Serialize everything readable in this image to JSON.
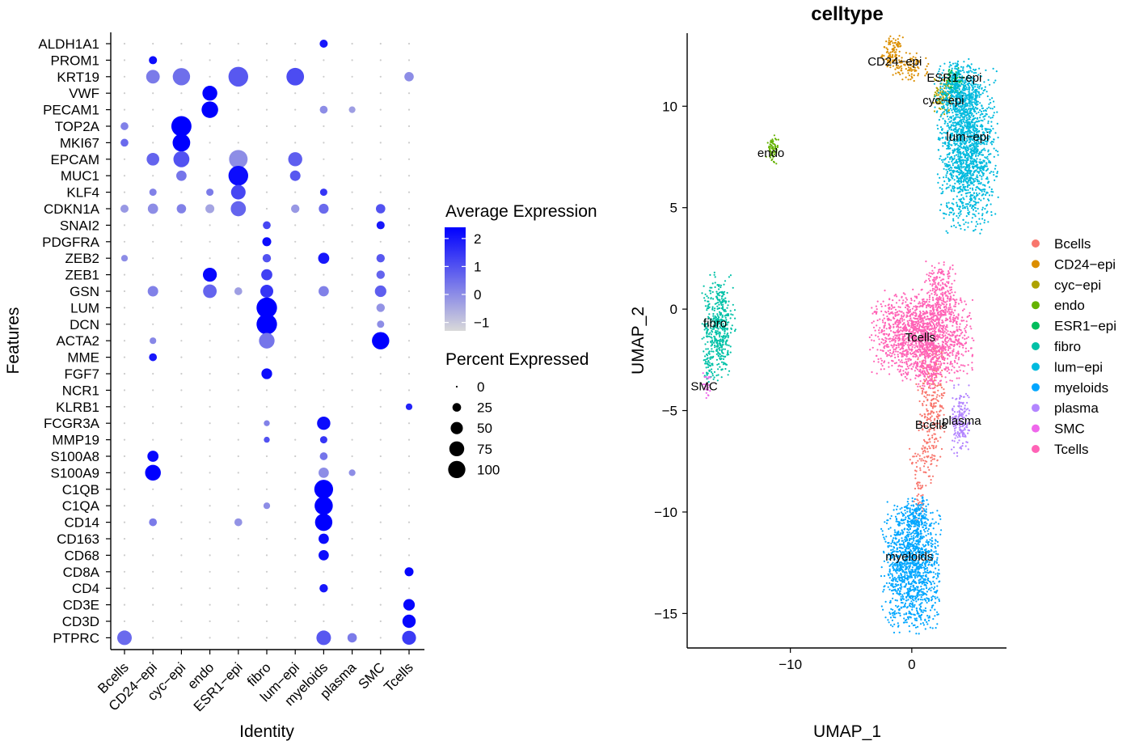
{
  "chart_data": [
    {
      "type": "dotplot",
      "xlabel": "Identity",
      "ylabel": "Features",
      "identities": [
        "Bcells",
        "CD24−epi",
        "cyc−epi",
        "endo",
        "ESR1−epi",
        "fibro",
        "lum−epi",
        "myeloids",
        "plasma",
        "SMC",
        "Tcells"
      ],
      "features": [
        "ALDH1A1",
        "PROM1",
        "KRT19",
        "VWF",
        "PECAM1",
        "TOP2A",
        "MKI67",
        "EPCAM",
        "MUC1",
        "KLF4",
        "CDKN1A",
        "SNAI2",
        "PDGFRA",
        "ZEB2",
        "ZEB1",
        "GSN",
        "LUM",
        "DCN",
        "ACTA2",
        "MME",
        "FGF7",
        "NCR1",
        "KLRB1",
        "FCGR3A",
        "MMP19",
        "S100A8",
        "S100A9",
        "C1QB",
        "C1QA",
        "CD14",
        "CD163",
        "CD68",
        "CD8A",
        "CD4",
        "CD3E",
        "CD3D",
        "PTPRC"
      ],
      "color_legend": {
        "title": "Average Expression",
        "ticks": [
          "2",
          "1",
          "0",
          "−1"
        ],
        "min": -1.3,
        "max": 2.4,
        "low_color": "#d9d9d9",
        "high_color": "#0000ff"
      },
      "size_legend": {
        "title": "Percent Expressed",
        "ticks": [
          "0",
          "25",
          "50",
          "75",
          "100"
        ]
      },
      "points": [
        {
          "feature": "ALDH1A1",
          "identity": "myeloids",
          "pct": 15,
          "avg": 2.0
        },
        {
          "feature": "PROM1",
          "identity": "CD24−epi",
          "pct": 15,
          "avg": 2.2
        },
        {
          "feature": "KRT19",
          "identity": "CD24−epi",
          "pct": 42,
          "avg": 0.3
        },
        {
          "feature": "KRT19",
          "identity": "cyc−epi",
          "pct": 68,
          "avg": 0.5
        },
        {
          "feature": "KRT19",
          "identity": "ESR1−epi",
          "pct": 88,
          "avg": 0.9
        },
        {
          "feature": "KRT19",
          "identity": "lum−epi",
          "pct": 70,
          "avg": 1.1
        },
        {
          "feature": "KRT19",
          "identity": "Tcells",
          "pct": 20,
          "avg": 0.0
        },
        {
          "feature": "VWF",
          "identity": "endo",
          "pct": 50,
          "avg": 2.4
        },
        {
          "feature": "PECAM1",
          "identity": "endo",
          "pct": 62,
          "avg": 2.4
        },
        {
          "feature": "PECAM1",
          "identity": "myeloids",
          "pct": 14,
          "avg": 0.0
        },
        {
          "feature": "PECAM1",
          "identity": "plasma",
          "pct": 10,
          "avg": -0.3
        },
        {
          "feature": "TOP2A",
          "identity": "Bcells",
          "pct": 14,
          "avg": 0.2
        },
        {
          "feature": "TOP2A",
          "identity": "cyc−epi",
          "pct": 92,
          "avg": 2.4
        },
        {
          "feature": "MKI67",
          "identity": "Bcells",
          "pct": 14,
          "avg": 0.6
        },
        {
          "feature": "MKI67",
          "identity": "cyc−epi",
          "pct": 70,
          "avg": 2.4
        },
        {
          "feature": "EPCAM",
          "identity": "CD24−epi",
          "pct": 36,
          "avg": 0.7
        },
        {
          "feature": "EPCAM",
          "identity": "cyc−epi",
          "pct": 58,
          "avg": 1.0
        },
        {
          "feature": "EPCAM",
          "identity": "ESR1−epi",
          "pct": 78,
          "avg": 0.0
        },
        {
          "feature": "EPCAM",
          "identity": "lum−epi",
          "pct": 45,
          "avg": 0.8
        },
        {
          "feature": "MUC1",
          "identity": "cyc−epi",
          "pct": 24,
          "avg": 0.4
        },
        {
          "feature": "MUC1",
          "identity": "ESR1−epi",
          "pct": 88,
          "avg": 2.2
        },
        {
          "feature": "MUC1",
          "identity": "lum−epi",
          "pct": 25,
          "avg": 0.9
        },
        {
          "feature": "KLF4",
          "identity": "CD24−epi",
          "pct": 12,
          "avg": 0.2
        },
        {
          "feature": "KLF4",
          "identity": "endo",
          "pct": 12,
          "avg": 0.3
        },
        {
          "feature": "KLF4",
          "identity": "ESR1−epi",
          "pct": 48,
          "avg": 1.2
        },
        {
          "feature": "KLF4",
          "identity": "myeloids",
          "pct": 12,
          "avg": 1.5
        },
        {
          "feature": "CDKN1A",
          "identity": "Bcells",
          "pct": 15,
          "avg": -0.2
        },
        {
          "feature": "CDKN1A",
          "identity": "CD24−epi",
          "pct": 24,
          "avg": 0.0
        },
        {
          "feature": "CDKN1A",
          "identity": "cyc−epi",
          "pct": 20,
          "avg": 0.2
        },
        {
          "feature": "CDKN1A",
          "identity": "endo",
          "pct": 18,
          "avg": -0.4
        },
        {
          "feature": "CDKN1A",
          "identity": "ESR1−epi",
          "pct": 52,
          "avg": 0.7
        },
        {
          "feature": "CDKN1A",
          "identity": "lum−epi",
          "pct": 16,
          "avg": -0.2
        },
        {
          "feature": "CDKN1A",
          "identity": "myeloids",
          "pct": 22,
          "avg": 0.6
        },
        {
          "feature": "CDKN1A",
          "identity": "SMC",
          "pct": 20,
          "avg": 1.0
        },
        {
          "feature": "SNAI2",
          "identity": "fibro",
          "pct": 14,
          "avg": 1.2
        },
        {
          "feature": "SNAI2",
          "identity": "SMC",
          "pct": 15,
          "avg": 2.0
        },
        {
          "feature": "PDGFRA",
          "identity": "fibro",
          "pct": 18,
          "avg": 2.2
        },
        {
          "feature": "ZEB2",
          "identity": "Bcells",
          "pct": 10,
          "avg": 0.0
        },
        {
          "feature": "ZEB2",
          "identity": "fibro",
          "pct": 16,
          "avg": 1.0
        },
        {
          "feature": "ZEB2",
          "identity": "myeloids",
          "pct": 28,
          "avg": 2.0
        },
        {
          "feature": "ZEB2",
          "identity": "SMC",
          "pct": 16,
          "avg": 0.9
        },
        {
          "feature": "ZEB1",
          "identity": "endo",
          "pct": 44,
          "avg": 2.3
        },
        {
          "feature": "ZEB1",
          "identity": "fibro",
          "pct": 28,
          "avg": 1.3
        },
        {
          "feature": "ZEB1",
          "identity": "SMC",
          "pct": 16,
          "avg": 0.7
        },
        {
          "feature": "GSN",
          "identity": "CD24−epi",
          "pct": 25,
          "avg": 0.2
        },
        {
          "feature": "GSN",
          "identity": "endo",
          "pct": 42,
          "avg": 0.7
        },
        {
          "feature": "GSN",
          "identity": "ESR1−epi",
          "pct": 14,
          "avg": -0.3
        },
        {
          "feature": "GSN",
          "identity": "fibro",
          "pct": 38,
          "avg": 1.5
        },
        {
          "feature": "GSN",
          "identity": "myeloids",
          "pct": 24,
          "avg": 0.2
        },
        {
          "feature": "GSN",
          "identity": "SMC",
          "pct": 30,
          "avg": 0.8
        },
        {
          "feature": "LUM",
          "identity": "fibro",
          "pct": 95,
          "avg": 2.4
        },
        {
          "feature": "LUM",
          "identity": "SMC",
          "pct": 16,
          "avg": -0.1
        },
        {
          "feature": "DCN",
          "identity": "fibro",
          "pct": 95,
          "avg": 2.4
        },
        {
          "feature": "DCN",
          "identity": "SMC",
          "pct": 12,
          "avg": 0.0
        },
        {
          "feature": "ACTA2",
          "identity": "CD24−epi",
          "pct": 10,
          "avg": 0.1
        },
        {
          "feature": "ACTA2",
          "identity": "fibro",
          "pct": 55,
          "avg": 0.4
        },
        {
          "feature": "ACTA2",
          "identity": "SMC",
          "pct": 68,
          "avg": 2.4
        },
        {
          "feature": "MME",
          "identity": "CD24−epi",
          "pct": 14,
          "avg": 2.0
        },
        {
          "feature": "FGF7",
          "identity": "fibro",
          "pct": 26,
          "avg": 2.2
        },
        {
          "feature": "KLRB1",
          "identity": "Tcells",
          "pct": 10,
          "avg": 1.8
        },
        {
          "feature": "FCGR3A",
          "identity": "myeloids",
          "pct": 40,
          "avg": 2.2
        },
        {
          "feature": "FCGR3A",
          "identity": "fibro",
          "pct": 8,
          "avg": 0.2
        },
        {
          "feature": "MMP19",
          "identity": "myeloids",
          "pct": 12,
          "avg": 1.5
        },
        {
          "feature": "MMP19",
          "identity": "fibro",
          "pct": 8,
          "avg": 1.0
        },
        {
          "feature": "S100A8",
          "identity": "CD24−epi",
          "pct": 28,
          "avg": 2.3
        },
        {
          "feature": "S100A8",
          "identity": "myeloids",
          "pct": 14,
          "avg": 0.4
        },
        {
          "feature": "S100A9",
          "identity": "CD24−epi",
          "pct": 56,
          "avg": 2.4
        },
        {
          "feature": "S100A9",
          "identity": "myeloids",
          "pct": 24,
          "avg": 0.0
        },
        {
          "feature": "S100A9",
          "identity": "plasma",
          "pct": 10,
          "avg": 0.0
        },
        {
          "feature": "C1QB",
          "identity": "myeloids",
          "pct": 80,
          "avg": 2.4
        },
        {
          "feature": "C1QA",
          "identity": "myeloids",
          "pct": 75,
          "avg": 2.4
        },
        {
          "feature": "C1QA",
          "identity": "fibro",
          "pct": 10,
          "avg": 0.0
        },
        {
          "feature": "CD14",
          "identity": "CD24−epi",
          "pct": 14,
          "avg": 0.3
        },
        {
          "feature": "CD14",
          "identity": "ESR1−epi",
          "pct": 14,
          "avg": -0.1
        },
        {
          "feature": "CD14",
          "identity": "myeloids",
          "pct": 68,
          "avg": 2.4
        },
        {
          "feature": "CD163",
          "identity": "myeloids",
          "pct": 24,
          "avg": 2.2
        },
        {
          "feature": "CD68",
          "identity": "myeloids",
          "pct": 24,
          "avg": 2.2
        },
        {
          "feature": "CD8A",
          "identity": "Tcells",
          "pct": 18,
          "avg": 2.3
        },
        {
          "feature": "CD4",
          "identity": "myeloids",
          "pct": 16,
          "avg": 2.0
        },
        {
          "feature": "CD3E",
          "identity": "Tcells",
          "pct": 30,
          "avg": 2.3
        },
        {
          "feature": "CD3D",
          "identity": "Tcells",
          "pct": 40,
          "avg": 2.3
        },
        {
          "feature": "PTPRC",
          "identity": "Bcells",
          "pct": 48,
          "avg": 0.6
        },
        {
          "feature": "PTPRC",
          "identity": "myeloids",
          "pct": 48,
          "avg": 0.9
        },
        {
          "feature": "PTPRC",
          "identity": "plasma",
          "pct": 20,
          "avg": 0.3
        },
        {
          "feature": "PTPRC",
          "identity": "Tcells",
          "pct": 44,
          "avg": 1.4
        }
      ]
    },
    {
      "type": "scatter",
      "title": "celltype",
      "xlabel": "UMAP_1",
      "ylabel": "UMAP_2",
      "xticks": [
        -10,
        0
      ],
      "yticks": [
        10,
        5,
        0,
        -5,
        -10,
        -15
      ],
      "xlim": [
        -18.5,
        7.8
      ],
      "ylim": [
        -16.7,
        13.6
      ],
      "legend_position": "right",
      "clusters": [
        {
          "name": "Bcells",
          "color": "#F8766D",
          "label": "Bcells",
          "label_pos": [
            1.6,
            -5.7
          ],
          "blobs": [
            {
              "cx": 1.7,
              "cy": -4.5,
              "sx": 0.55,
              "sy": 1.7,
              "n": 260
            },
            {
              "cx": 1.1,
              "cy": -7.3,
              "sx": 0.6,
              "sy": 0.9,
              "n": 70
            },
            {
              "cx": 0.6,
              "cy": -9.2,
              "sx": 0.2,
              "sy": 0.6,
              "n": 35
            }
          ]
        },
        {
          "name": "CD24−epi",
          "color": "#DB8E00",
          "label": "CD24−epi",
          "label_pos": [
            -1.4,
            12.2
          ],
          "blobs": [
            {
              "cx": -1.6,
              "cy": 12.6,
              "sx": 0.4,
              "sy": 0.4,
              "n": 110
            },
            {
              "cx": -0.1,
              "cy": 11.9,
              "sx": 0.7,
              "sy": 0.35,
              "n": 90
            }
          ]
        },
        {
          "name": "cyc−epi",
          "color": "#AEA200",
          "label": "cyc−epi",
          "label_pos": [
            2.6,
            10.3
          ],
          "blobs": [
            {
              "cx": 2.6,
              "cy": 10.6,
              "sx": 0.35,
              "sy": 0.45,
              "n": 100
            }
          ]
        },
        {
          "name": "endo",
          "color": "#64B200",
          "label": "endo",
          "label_pos": [
            -11.6,
            7.7
          ],
          "blobs": [
            {
              "cx": -11.5,
              "cy": 7.8,
              "sx": 0.25,
              "sy": 0.35,
              "n": 60
            }
          ]
        },
        {
          "name": "ESR1−epi",
          "color": "#00BD5C",
          "label": "ESR1−epi",
          "label_pos": [
            3.5,
            11.4
          ],
          "blobs": [
            {
              "cx": 3.5,
              "cy": 11.2,
              "sx": 0.4,
              "sy": 0.3,
              "n": 100
            }
          ]
        },
        {
          "name": "fibro",
          "color": "#00C1A7",
          "label": "fibro",
          "label_pos": [
            -16.2,
            -0.7
          ],
          "blobs": [
            {
              "cx": -15.9,
              "cy": -0.8,
              "sx": 0.6,
              "sy": 1.2,
              "n": 450
            },
            {
              "cx": -16.7,
              "cy": -2.7,
              "sx": 0.2,
              "sy": 0.4,
              "n": 40
            }
          ]
        },
        {
          "name": "lum−epi",
          "color": "#00BADE",
          "label": "lum−epi",
          "label_pos": [
            4.6,
            8.5
          ],
          "blobs": [
            {
              "cx": 4.6,
              "cy": 7.8,
              "sx": 1.1,
              "sy": 1.8,
              "n": 1500
            },
            {
              "cx": 3.9,
              "cy": 10.5,
              "sx": 0.9,
              "sy": 0.8,
              "n": 450
            }
          ]
        },
        {
          "name": "myeloids",
          "color": "#00A6FF",
          "label": "myeloids",
          "label_pos": [
            -0.2,
            -12.2
          ],
          "blobs": [
            {
              "cx": 0.0,
              "cy": -12.6,
              "sx": 1.1,
              "sy": 1.5,
              "n": 1300
            },
            {
              "cx": 0.5,
              "cy": -10.3,
              "sx": 0.5,
              "sy": 0.5,
              "n": 120
            }
          ]
        },
        {
          "name": "plasma",
          "color": "#B385FF",
          "label": "plasma",
          "label_pos": [
            4.1,
            -5.5
          ],
          "blobs": [
            {
              "cx": 4.0,
              "cy": -5.5,
              "sx": 0.35,
              "sy": 0.8,
              "n": 180
            }
          ]
        },
        {
          "name": "SMC",
          "color": "#EF67EB",
          "label": "SMC",
          "label_pos": [
            -17.1,
            -3.8
          ],
          "blobs": [
            {
              "cx": -16.9,
              "cy": -3.8,
              "sx": 0.15,
              "sy": 0.3,
              "n": 25
            }
          ]
        },
        {
          "name": "Tcells",
          "color": "#FF63B6",
          "label": "Tcells",
          "label_pos": [
            0.7,
            -1.4
          ],
          "blobs": [
            {
              "cx": 0.9,
              "cy": -1.3,
              "sx": 1.9,
              "sy": 1.0,
              "n": 1600
            },
            {
              "cx": 2.4,
              "cy": 0.8,
              "sx": 0.6,
              "sy": 0.7,
              "n": 200
            },
            {
              "cx": 1.4,
              "cy": -3.2,
              "sx": 0.5,
              "sy": 0.4,
              "n": 90
            }
          ]
        }
      ]
    }
  ]
}
